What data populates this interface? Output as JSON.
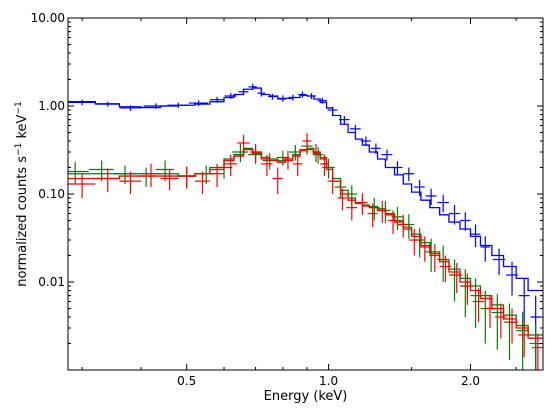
{
  "chart_data": {
    "type": "line",
    "xlabel": "Energy (keV)",
    "ylabel": "normalized counts s$^{-1}$ keV$^{-1}$",
    "ylabel_display": {
      "base": "normalized counts s",
      "sup1": "−1",
      "mid": " keV",
      "sup2": "−1"
    },
    "xscale": "log",
    "yscale": "log",
    "xlim": [
      0.28,
      2.85
    ],
    "ylim": [
      0.001,
      10.0
    ],
    "x_ticks": [
      {
        "value": 0.5,
        "label": "0.5"
      },
      {
        "value": 1.0,
        "label": "1.0"
      },
      {
        "value": 2.0,
        "label": "2.0"
      }
    ],
    "y_ticks": [
      {
        "value": 0.01,
        "label": "0.01"
      },
      {
        "value": 0.1,
        "label": "0.10"
      },
      {
        "value": 1.0,
        "label": "1.00"
      },
      {
        "value": 10.0,
        "label": "10.00"
      }
    ],
    "grid": false,
    "legend": "none",
    "series": [
      {
        "color": "#0000ff",
        "model": {
          "x": [
            0.28,
            0.32,
            0.36,
            0.4,
            0.44,
            0.48,
            0.52,
            0.56,
            0.6,
            0.63,
            0.66,
            0.69,
            0.72,
            0.75,
            0.78,
            0.81,
            0.84,
            0.87,
            0.9,
            0.93,
            0.96,
            0.99,
            1.02,
            1.06,
            1.1,
            1.14,
            1.18,
            1.22,
            1.27,
            1.32,
            1.38,
            1.44,
            1.5,
            1.57,
            1.64,
            1.72,
            1.8,
            1.9,
            2.0,
            2.1,
            2.22,
            2.35,
            2.5,
            2.65,
            2.85
          ],
          "y": [
            1.12,
            1.06,
            0.98,
            0.96,
            1.0,
            1.02,
            1.05,
            1.12,
            1.25,
            1.35,
            1.55,
            1.6,
            1.35,
            1.3,
            1.2,
            1.22,
            1.25,
            1.32,
            1.3,
            1.2,
            1.1,
            0.95,
            0.78,
            0.62,
            0.5,
            0.42,
            0.36,
            0.3,
            0.25,
            0.2,
            0.165,
            0.13,
            0.105,
            0.085,
            0.07,
            0.058,
            0.048,
            0.04,
            0.033,
            0.026,
            0.02,
            0.015,
            0.011,
            0.008,
            0.0055
          ]
        },
        "points": {
          "x": [
            0.3,
            0.34,
            0.38,
            0.43,
            0.48,
            0.53,
            0.58,
            0.62,
            0.66,
            0.69,
            0.72,
            0.76,
            0.8,
            0.84,
            0.88,
            0.92,
            0.97,
            1.02,
            1.08,
            1.14,
            1.2,
            1.26,
            1.33,
            1.4,
            1.48,
            1.56,
            1.65,
            1.75,
            1.85,
            1.95,
            2.05,
            2.15,
            2.3,
            2.45,
            2.6,
            2.75
          ],
          "y": [
            1.1,
            1.05,
            0.95,
            1.0,
            1.02,
            1.08,
            1.18,
            1.3,
            1.45,
            1.65,
            1.4,
            1.28,
            1.22,
            1.25,
            1.35,
            1.3,
            1.15,
            0.9,
            0.7,
            0.55,
            0.4,
            0.33,
            0.28,
            0.2,
            0.17,
            0.12,
            0.095,
            0.08,
            0.06,
            0.05,
            0.035,
            0.025,
            0.018,
            0.012,
            0.007,
            0.004
          ],
          "yerr": [
            0.08,
            0.07,
            0.07,
            0.07,
            0.07,
            0.08,
            0.09,
            0.1,
            0.12,
            0.14,
            0.12,
            0.1,
            0.1,
            0.1,
            0.11,
            0.1,
            0.09,
            0.08,
            0.07,
            0.06,
            0.05,
            0.045,
            0.04,
            0.035,
            0.03,
            0.025,
            0.02,
            0.018,
            0.015,
            0.012,
            0.01,
            0.008,
            0.006,
            0.005,
            0.004,
            0.003
          ],
          "xerr": [
            0.02,
            0.02,
            0.02,
            0.025,
            0.025,
            0.025,
            0.02,
            0.018,
            0.016,
            0.014,
            0.014,
            0.016,
            0.018,
            0.018,
            0.018,
            0.02,
            0.022,
            0.025,
            0.028,
            0.03,
            0.03,
            0.03,
            0.035,
            0.035,
            0.04,
            0.04,
            0.045,
            0.05,
            0.05,
            0.05,
            0.05,
            0.05,
            0.07,
            0.07,
            0.07,
            0.07
          ]
        }
      },
      {
        "color": "#008000",
        "model": {
          "x": [
            0.28,
            0.32,
            0.36,
            0.4,
            0.44,
            0.48,
            0.52,
            0.56,
            0.6,
            0.63,
            0.66,
            0.69,
            0.72,
            0.75,
            0.78,
            0.81,
            0.84,
            0.87,
            0.9,
            0.93,
            0.96,
            0.99,
            1.02,
            1.06,
            1.1,
            1.14,
            1.18,
            1.22,
            1.27,
            1.32,
            1.38,
            1.44,
            1.5,
            1.57,
            1.64,
            1.72,
            1.8,
            1.9,
            2.0,
            2.1,
            2.22,
            2.35,
            2.5,
            2.65,
            2.85
          ],
          "y": [
            0.17,
            0.17,
            0.17,
            0.17,
            0.17,
            0.16,
            0.17,
            0.2,
            0.25,
            0.28,
            0.33,
            0.3,
            0.26,
            0.25,
            0.24,
            0.25,
            0.28,
            0.32,
            0.33,
            0.3,
            0.26,
            0.2,
            0.15,
            0.11,
            0.09,
            0.08,
            0.075,
            0.072,
            0.068,
            0.06,
            0.05,
            0.042,
            0.035,
            0.028,
            0.022,
            0.018,
            0.014,
            0.011,
            0.009,
            0.007,
            0.0055,
            0.0042,
            0.0032,
            0.0025,
            0.002
          ]
        },
        "points": {
          "x": [
            0.29,
            0.33,
            0.37,
            0.41,
            0.45,
            0.5,
            0.55,
            0.6,
            0.65,
            0.7,
            0.75,
            0.8,
            0.85,
            0.9,
            0.95,
            1.0,
            1.06,
            1.12,
            1.18,
            1.25,
            1.32,
            1.4,
            1.48,
            1.56,
            1.65,
            1.75,
            1.85,
            1.95,
            2.05,
            2.15,
            2.28,
            2.42,
            2.58,
            2.75
          ],
          "y": [
            0.18,
            0.19,
            0.17,
            0.16,
            0.19,
            0.16,
            0.17,
            0.2,
            0.3,
            0.28,
            0.24,
            0.26,
            0.3,
            0.35,
            0.28,
            0.2,
            0.12,
            0.1,
            0.08,
            0.07,
            0.065,
            0.055,
            0.045,
            0.03,
            0.022,
            0.018,
            0.012,
            0.009,
            0.007,
            0.005,
            0.0045,
            0.0035,
            0.0028,
            0.002
          ],
          "yerr": [
            0.05,
            0.05,
            0.04,
            0.04,
            0.05,
            0.04,
            0.04,
            0.05,
            0.07,
            0.06,
            0.05,
            0.05,
            0.06,
            0.07,
            0.06,
            0.05,
            0.03,
            0.025,
            0.02,
            0.02,
            0.018,
            0.016,
            0.014,
            0.011,
            0.009,
            0.008,
            0.006,
            0.005,
            0.004,
            0.003,
            0.0028,
            0.0022,
            0.0018,
            0.0013
          ],
          "xerr": [
            0.02,
            0.02,
            0.02,
            0.02,
            0.02,
            0.025,
            0.025,
            0.025,
            0.025,
            0.025,
            0.025,
            0.025,
            0.025,
            0.025,
            0.025,
            0.03,
            0.03,
            0.03,
            0.03,
            0.035,
            0.035,
            0.04,
            0.04,
            0.04,
            0.045,
            0.05,
            0.05,
            0.05,
            0.05,
            0.05,
            0.065,
            0.07,
            0.08,
            0.08
          ]
        }
      },
      {
        "color": "#ff0000",
        "model": {
          "x": [
            0.28,
            0.32,
            0.36,
            0.4,
            0.44,
            0.48,
            0.52,
            0.56,
            0.6,
            0.63,
            0.66,
            0.69,
            0.72,
            0.75,
            0.78,
            0.81,
            0.84,
            0.87,
            0.9,
            0.93,
            0.96,
            0.99,
            1.02,
            1.06,
            1.1,
            1.14,
            1.18,
            1.22,
            1.27,
            1.32,
            1.38,
            1.44,
            1.5,
            1.57,
            1.64,
            1.72,
            1.8,
            1.9,
            2.0,
            2.1,
            2.22,
            2.35,
            2.5,
            2.65,
            2.85
          ],
          "y": [
            0.15,
            0.15,
            0.16,
            0.16,
            0.16,
            0.16,
            0.17,
            0.19,
            0.24,
            0.27,
            0.32,
            0.29,
            0.25,
            0.24,
            0.23,
            0.24,
            0.27,
            0.31,
            0.32,
            0.29,
            0.25,
            0.19,
            0.14,
            0.1,
            0.085,
            0.078,
            0.073,
            0.07,
            0.065,
            0.058,
            0.048,
            0.04,
            0.033,
            0.026,
            0.021,
            0.017,
            0.013,
            0.01,
            0.008,
            0.0065,
            0.005,
            0.0038,
            0.003,
            0.0023,
            0.0018
          ]
        },
        "points": {
          "x": [
            0.3,
            0.34,
            0.38,
            0.42,
            0.46,
            0.5,
            0.54,
            0.58,
            0.62,
            0.66,
            0.7,
            0.74,
            0.78,
            0.82,
            0.86,
            0.9,
            0.94,
            0.98,
            1.02,
            1.07,
            1.12,
            1.18,
            1.24,
            1.3,
            1.37,
            1.44,
            1.52,
            1.6,
            1.68,
            1.77,
            1.87,
            1.97,
            2.08,
            2.2,
            2.32,
            2.45,
            2.6,
            2.78
          ],
          "y": [
            0.13,
            0.15,
            0.14,
            0.17,
            0.15,
            0.16,
            0.14,
            0.17,
            0.22,
            0.38,
            0.3,
            0.22,
            0.15,
            0.25,
            0.22,
            0.4,
            0.3,
            0.22,
            0.14,
            0.09,
            0.07,
            0.08,
            0.06,
            0.065,
            0.05,
            0.045,
            0.03,
            0.025,
            0.02,
            0.015,
            0.012,
            0.009,
            0.006,
            0.005,
            0.004,
            0.0035,
            0.0025,
            0.0018
          ],
          "yerr": [
            0.04,
            0.045,
            0.04,
            0.05,
            0.04,
            0.045,
            0.04,
            0.05,
            0.06,
            0.09,
            0.07,
            0.06,
            0.05,
            0.06,
            0.06,
            0.09,
            0.07,
            0.06,
            0.04,
            0.025,
            0.02,
            0.022,
            0.018,
            0.018,
            0.015,
            0.013,
            0.01,
            0.008,
            0.007,
            0.005,
            0.0045,
            0.0035,
            0.0025,
            0.002,
            0.0017,
            0.0015,
            0.0011,
            0.0008
          ],
          "xerr": [
            0.02,
            0.02,
            0.02,
            0.02,
            0.02,
            0.02,
            0.02,
            0.02,
            0.02,
            0.02,
            0.02,
            0.02,
            0.02,
            0.02,
            0.02,
            0.02,
            0.02,
            0.02,
            0.025,
            0.025,
            0.03,
            0.03,
            0.03,
            0.035,
            0.035,
            0.04,
            0.04,
            0.045,
            0.045,
            0.05,
            0.05,
            0.055,
            0.06,
            0.06,
            0.065,
            0.07,
            0.075,
            0.08
          ]
        }
      }
    ]
  }
}
